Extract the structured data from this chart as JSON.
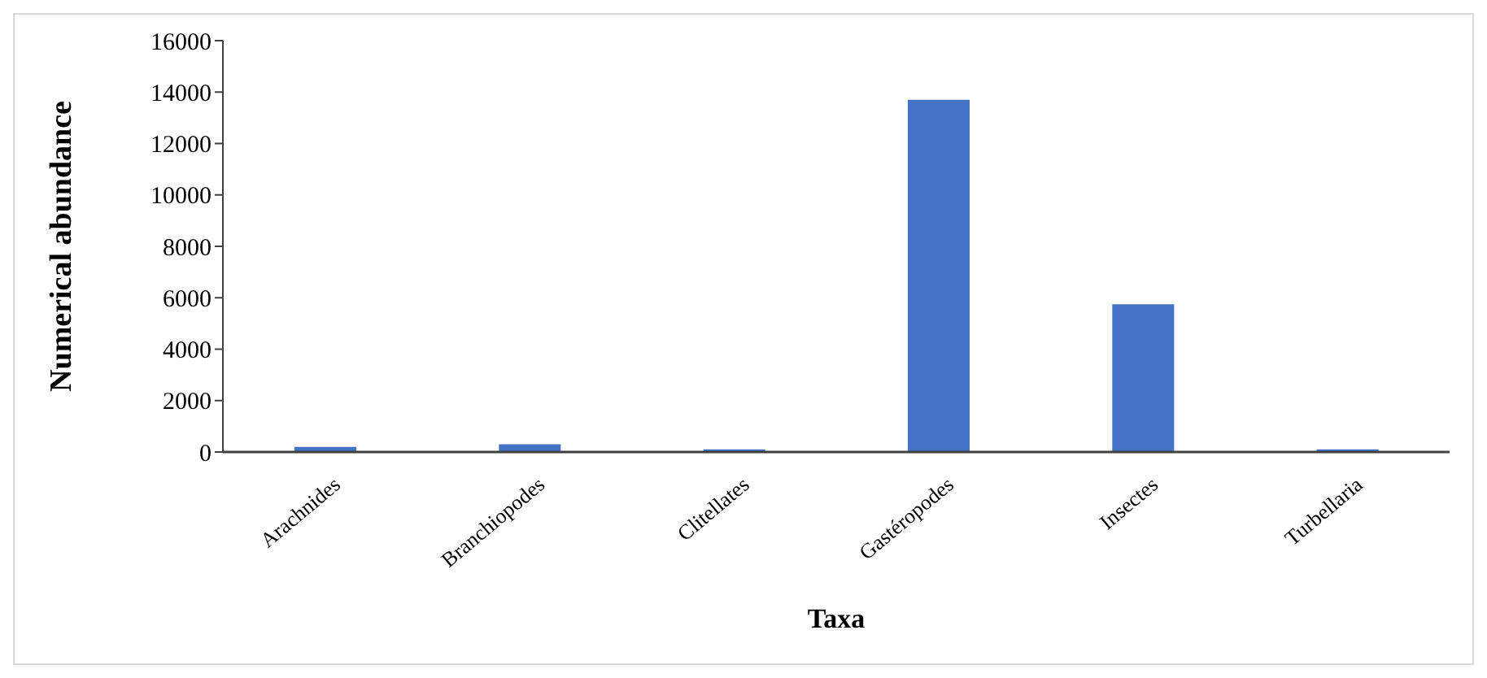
{
  "chart_data": {
    "type": "bar",
    "xlabel": "Taxa",
    "ylabel": "Numerical  abundance",
    "categories": [
      "Arachnides",
      "Branchiopodes",
      "Clitellates",
      "Gastéropodes",
      "Insectes",
      "Turbellaria"
    ],
    "values": [
      200,
      300,
      100,
      13700,
      5750,
      100
    ],
    "color": "#4472c4",
    "ylim": [
      0,
      16000
    ],
    "yticks": [
      0,
      2000,
      4000,
      6000,
      8000,
      10000,
      12000,
      14000,
      16000
    ],
    "grid": false
  }
}
